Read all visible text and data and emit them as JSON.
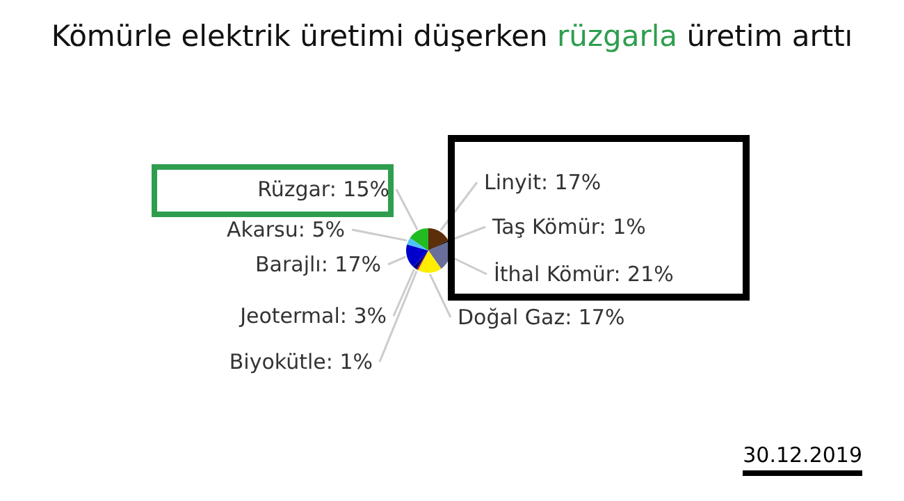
{
  "chart_data": {
    "type": "pie",
    "title": "Kömürle elektrik üretimi düşerken rüzgarla üretim arttı",
    "categories": [
      "Linyit",
      "Taş Kömür",
      "İthal Kömür",
      "Doğal Gaz",
      "Biyokütle",
      "Jeotermal",
      "Barajlı",
      "Akarsu",
      "Rüzgar"
    ],
    "values": [
      17,
      1,
      21,
      17,
      1,
      3,
      17,
      5,
      15
    ],
    "value_labels": [
      "17%",
      "1%",
      "21%",
      "17%",
      "1%",
      "3%",
      "17%",
      "5%",
      "15%"
    ],
    "colors": [
      "#5c2e0a",
      "#111111",
      "#6a6e9a",
      "#ffee00",
      "#d01010",
      "#000080",
      "#0000cc",
      "#4fc3f7",
      "#22bb22"
    ],
    "annotations": [
      "30.12.2019"
    ]
  }
}
